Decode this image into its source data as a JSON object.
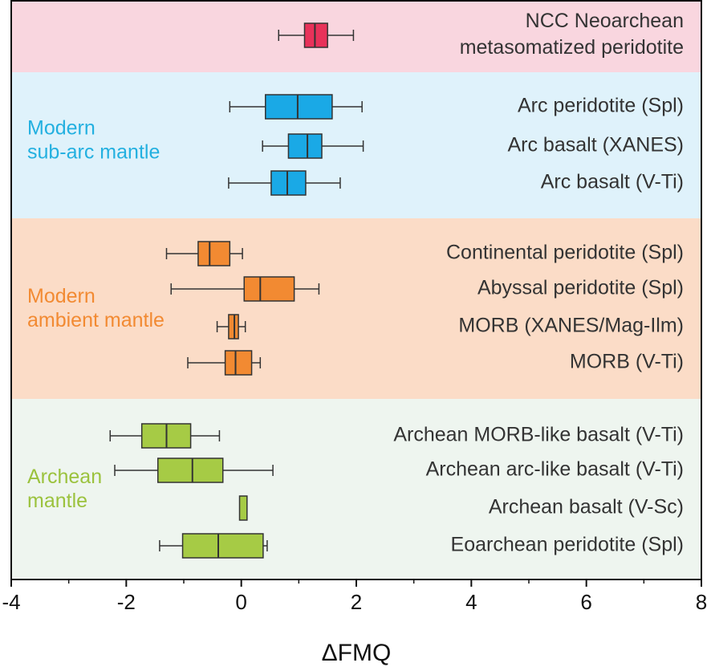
{
  "chart_data": {
    "type": "boxplot",
    "xlabel": "ΔFMQ",
    "xlim": [
      -4,
      8
    ],
    "xticks": [
      -4,
      -2,
      0,
      2,
      4,
      6,
      8
    ],
    "xminor_ticks": [
      -3,
      -1,
      1,
      3,
      5,
      7
    ],
    "groups": [
      {
        "color": "#e8325a",
        "background": "#f9d6df",
        "rows": [
          {
            "label": [
              "NCC Neoarchean",
              "metasomatized peridotite"
            ],
            "min": 0.65,
            "q1": 1.1,
            "median": 1.28,
            "q3": 1.5,
            "max": 1.95
          }
        ]
      },
      {
        "name": [
          "Modern",
          "sub-arc mantle"
        ],
        "color": "#1aa9e6",
        "label_color": "#23b0e0",
        "background": "#dff2fb",
        "rows": [
          {
            "label": [
              "Arc peridotite (Spl)"
            ],
            "min": -0.2,
            "q1": 0.42,
            "median": 0.98,
            "q3": 1.58,
            "max": 2.1
          },
          {
            "label": [
              "Arc basalt (XANES)"
            ],
            "min": 0.37,
            "q1": 0.82,
            "median": 1.15,
            "q3": 1.4,
            "max": 2.12
          },
          {
            "label": [
              "Arc basalt (V-Ti)"
            ],
            "min": -0.22,
            "q1": 0.52,
            "median": 0.8,
            "q3": 1.12,
            "max": 1.72
          }
        ]
      },
      {
        "name": [
          "Modern",
          "ambient mantle"
        ],
        "color": "#f28a32",
        "label_color": "#f28a32",
        "background": "#fbdcc7",
        "rows": [
          {
            "label": [
              "Continental peridotite (Spl)"
            ],
            "min": -1.3,
            "q1": -0.75,
            "median": -0.55,
            "q3": -0.2,
            "max": 0.02
          },
          {
            "label": [
              "Abyssal peridotite (Spl)"
            ],
            "min": -1.22,
            "q1": 0.05,
            "median": 0.33,
            "q3": 0.92,
            "max": 1.35
          },
          {
            "label": [
              "MORB (XANES/Mag-Ilm)"
            ],
            "min": -0.42,
            "q1": -0.22,
            "median": -0.12,
            "q3": -0.05,
            "max": 0.07
          },
          {
            "label": [
              "MORB (V-Ti)"
            ],
            "min": -0.93,
            "q1": -0.28,
            "median": -0.1,
            "q3": 0.18,
            "max": 0.33
          }
        ]
      },
      {
        "name": [
          "Archean",
          "mantle"
        ],
        "color": "#a6cb45",
        "label_color": "#9bc23d",
        "background": "#eef5ef",
        "rows": [
          {
            "label": [
              "Archean MORB-like basalt (V-Ti)"
            ],
            "min": -2.28,
            "q1": -1.73,
            "median": -1.3,
            "q3": -0.88,
            "max": -0.38
          },
          {
            "label": [
              "Archean arc-like basalt (V-Ti)"
            ],
            "min": -2.2,
            "q1": -1.45,
            "median": -0.85,
            "q3": -0.32,
            "max": 0.55
          },
          {
            "label": [
              "Archean basalt (V-Sc)"
            ],
            "q1": -0.03,
            "q3": 0.1
          },
          {
            "label": [
              "Eoarchean  peridotite (Spl)"
            ],
            "min": -1.42,
            "q1": -1.02,
            "median": -0.4,
            "q3": 0.38,
            "max": 0.45
          }
        ]
      }
    ]
  }
}
